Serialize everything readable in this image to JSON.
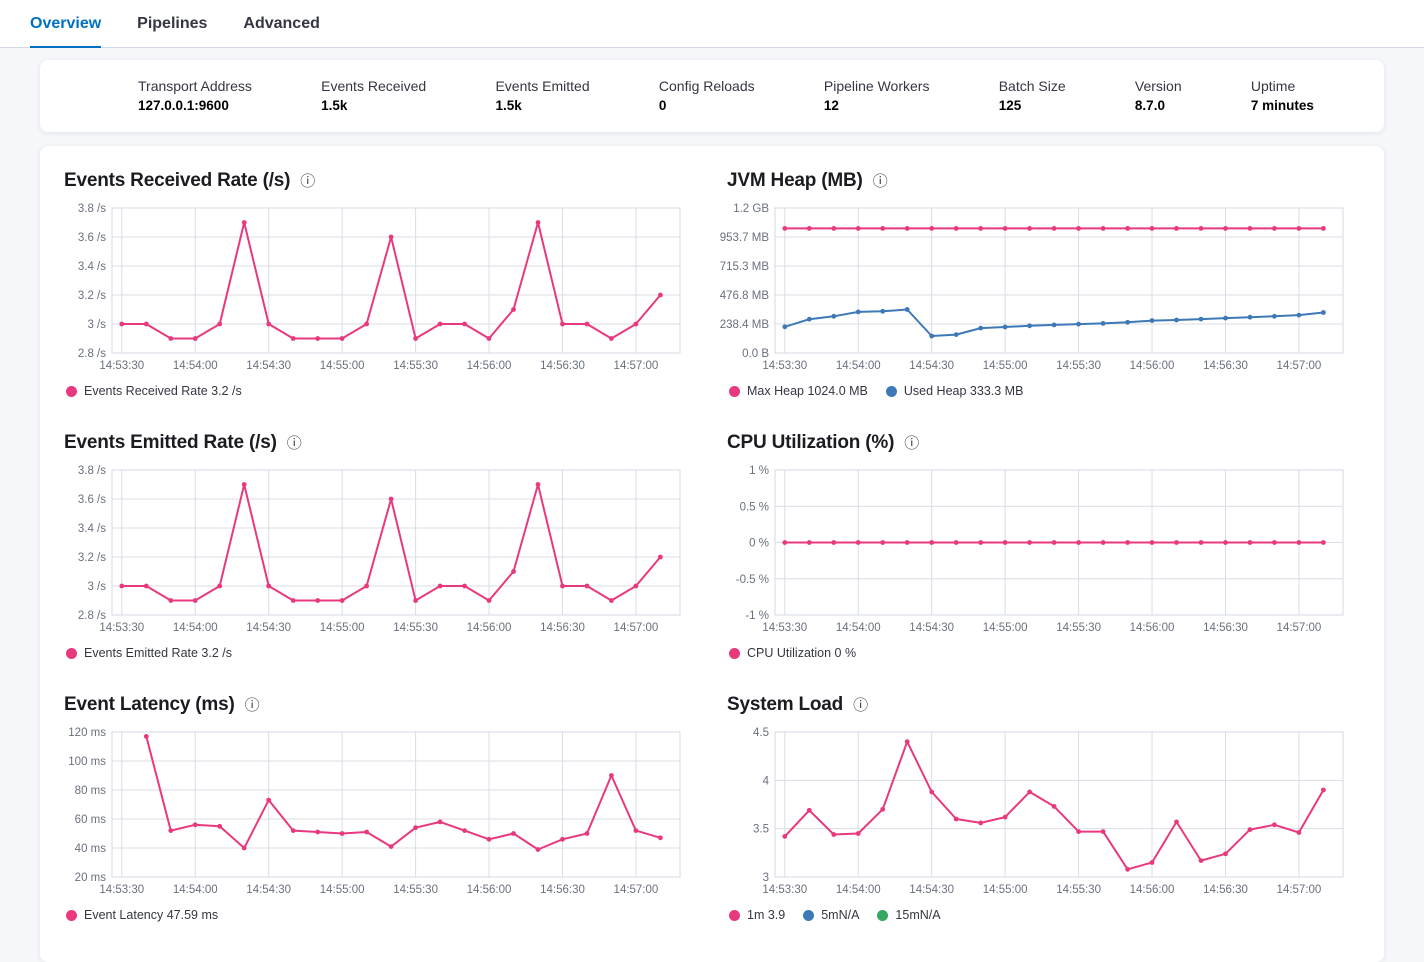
{
  "tabs": [
    {
      "label": "Overview",
      "active": true
    },
    {
      "label": "Pipelines",
      "active": false
    },
    {
      "label": "Advanced",
      "active": false
    }
  ],
  "summary": {
    "items": [
      {
        "label": "Transport Address",
        "value": "127.0.0.1:9600"
      },
      {
        "label": "Events Received",
        "value": "1.5k"
      },
      {
        "label": "Events Emitted",
        "value": "1.5k"
      },
      {
        "label": "Config Reloads",
        "value": "0"
      },
      {
        "label": "Pipeline Workers",
        "value": "12"
      },
      {
        "label": "Batch Size",
        "value": "125"
      },
      {
        "label": "Version",
        "value": "8.7.0"
      },
      {
        "label": "Uptime",
        "value": "7 minutes"
      }
    ]
  },
  "colors": {
    "pink": "#e8397f",
    "blue": "#3d79b6",
    "green": "#35a760",
    "tab_accent": "#0071c2"
  },
  "info_icon_glyph": "ⓘ",
  "chart_data": [
    {
      "id": "events-received-rate",
      "type": "line",
      "title": "Events Received Rate (/s)",
      "ylim": [
        2.8,
        3.8
      ],
      "y_ticks": [
        {
          "v": 3.8,
          "label": "3.8 /s"
        },
        {
          "v": 3.6,
          "label": "3.6 /s"
        },
        {
          "v": 3.4,
          "label": "3.4 /s"
        },
        {
          "v": 3.2,
          "label": "3.2 /s"
        },
        {
          "v": 3.0,
          "label": "3 /s"
        },
        {
          "v": 2.8,
          "label": "2.8 /s"
        }
      ],
      "x_tick_labels": [
        "14:53:30",
        "14:54:00",
        "14:54:30",
        "14:55:00",
        "14:55:30",
        "14:56:00",
        "14:56:30",
        "14:57:00"
      ],
      "x_tick_interval_s": 30,
      "point_interval_s": 10,
      "series": [
        {
          "name": "Events Received Rate",
          "color": "pink",
          "start_t": 0,
          "values": [
            3,
            3,
            2.9,
            2.9,
            3,
            3.7,
            3,
            2.9,
            2.9,
            2.9,
            3,
            3.6,
            2.9,
            3,
            3,
            2.9,
            3.1,
            3.7,
            3,
            3,
            2.9,
            3,
            3.2
          ]
        }
      ],
      "legend": [
        {
          "label": "Events Received Rate 3.2 /s",
          "color": "pink"
        }
      ]
    },
    {
      "id": "jvm-heap",
      "type": "line",
      "title": "JVM Heap (MB)",
      "ylim": [
        0,
        1192.1
      ],
      "y_ticks": [
        {
          "v": 1192.1,
          "label": "1.2 GB"
        },
        {
          "v": 953.7,
          "label": "953.7 MB"
        },
        {
          "v": 715.3,
          "label": "715.3 MB"
        },
        {
          "v": 476.8,
          "label": "476.8 MB"
        },
        {
          "v": 238.4,
          "label": "238.4 MB"
        },
        {
          "v": 0,
          "label": "0.0 B"
        }
      ],
      "x_tick_labels": [
        "14:53:30",
        "14:54:00",
        "14:54:30",
        "14:55:00",
        "14:55:30",
        "14:56:00",
        "14:56:30",
        "14:57:00"
      ],
      "x_tick_interval_s": 30,
      "point_interval_s": 10,
      "series": [
        {
          "name": "Max Heap",
          "color": "pink",
          "start_t": 0,
          "values": [
            1024,
            1024,
            1024,
            1024,
            1024,
            1024,
            1024,
            1024,
            1024,
            1024,
            1024,
            1024,
            1024,
            1024,
            1024,
            1024,
            1024,
            1024,
            1024,
            1024,
            1024,
            1024,
            1024
          ]
        },
        {
          "name": "Used Heap",
          "color": "blue",
          "start_t": 0,
          "values": [
            215,
            278,
            302,
            338,
            343,
            358,
            140,
            151,
            205,
            214,
            224,
            231,
            238,
            243,
            252,
            266,
            271,
            279,
            287,
            294,
            302,
            312,
            333
          ]
        }
      ],
      "legend": [
        {
          "label": "Max Heap 1024.0 MB",
          "color": "pink"
        },
        {
          "label": "Used Heap 333.3 MB",
          "color": "blue"
        }
      ]
    },
    {
      "id": "events-emitted-rate",
      "type": "line",
      "title": "Events Emitted Rate (/s)",
      "ylim": [
        2.8,
        3.8
      ],
      "y_ticks": [
        {
          "v": 3.8,
          "label": "3.8 /s"
        },
        {
          "v": 3.6,
          "label": "3.6 /s"
        },
        {
          "v": 3.4,
          "label": "3.4 /s"
        },
        {
          "v": 3.2,
          "label": "3.2 /s"
        },
        {
          "v": 3.0,
          "label": "3 /s"
        },
        {
          "v": 2.8,
          "label": "2.8 /s"
        }
      ],
      "x_tick_labels": [
        "14:53:30",
        "14:54:00",
        "14:54:30",
        "14:55:00",
        "14:55:30",
        "14:56:00",
        "14:56:30",
        "14:57:00"
      ],
      "x_tick_interval_s": 30,
      "point_interval_s": 10,
      "series": [
        {
          "name": "Events Emitted Rate",
          "color": "pink",
          "start_t": 0,
          "values": [
            3,
            3,
            2.9,
            2.9,
            3,
            3.7,
            3,
            2.9,
            2.9,
            2.9,
            3,
            3.6,
            2.9,
            3,
            3,
            2.9,
            3.1,
            3.7,
            3,
            3,
            2.9,
            3,
            3.2
          ]
        }
      ],
      "legend": [
        {
          "label": "Events Emitted Rate 3.2 /s",
          "color": "pink"
        }
      ]
    },
    {
      "id": "cpu-utilization",
      "type": "line",
      "title": "CPU Utilization (%)",
      "ylim": [
        -1,
        1
      ],
      "y_ticks": [
        {
          "v": 1,
          "label": "1 %"
        },
        {
          "v": 0.5,
          "label": "0.5 %"
        },
        {
          "v": 0,
          "label": "0 %"
        },
        {
          "v": -0.5,
          "label": "-0.5 %"
        },
        {
          "v": -1,
          "label": "-1 %"
        }
      ],
      "x_tick_labels": [
        "14:53:30",
        "14:54:00",
        "14:54:30",
        "14:55:00",
        "14:55:30",
        "14:56:00",
        "14:56:30",
        "14:57:00"
      ],
      "x_tick_interval_s": 30,
      "point_interval_s": 10,
      "series": [
        {
          "name": "CPU Utilization",
          "color": "pink",
          "start_t": 0,
          "values": [
            0,
            0,
            0,
            0,
            0,
            0,
            0,
            0,
            0,
            0,
            0,
            0,
            0,
            0,
            0,
            0,
            0,
            0,
            0,
            0,
            0,
            0,
            0
          ]
        }
      ],
      "legend": [
        {
          "label": "CPU Utilization 0 %",
          "color": "pink"
        }
      ]
    },
    {
      "id": "event-latency",
      "type": "line",
      "title": "Event Latency (ms)",
      "ylim": [
        20,
        120
      ],
      "y_ticks": [
        {
          "v": 120,
          "label": "120 ms"
        },
        {
          "v": 100,
          "label": "100 ms"
        },
        {
          "v": 80,
          "label": "80 ms"
        },
        {
          "v": 60,
          "label": "60 ms"
        },
        {
          "v": 40,
          "label": "40 ms"
        },
        {
          "v": 20,
          "label": "20 ms"
        }
      ],
      "x_tick_labels": [
        "14:53:30",
        "14:54:00",
        "14:54:30",
        "14:55:00",
        "14:55:30",
        "14:56:00",
        "14:56:30",
        "14:57:00"
      ],
      "x_tick_interval_s": 30,
      "point_interval_s": 10,
      "series": [
        {
          "name": "Event Latency",
          "color": "pink",
          "start_t": 10,
          "values": [
            117,
            52,
            56,
            55,
            40,
            73,
            52,
            51,
            50,
            51,
            41,
            54,
            58,
            52,
            46,
            50,
            39,
            46,
            50,
            90,
            52,
            47
          ]
        }
      ],
      "legend": [
        {
          "label": "Event Latency 47.59 ms",
          "color": "pink"
        }
      ]
    },
    {
      "id": "system-load",
      "type": "line",
      "title": "System Load",
      "ylim": [
        3,
        4.5
      ],
      "y_ticks": [
        {
          "v": 4.5,
          "label": "4.5"
        },
        {
          "v": 4,
          "label": "4"
        },
        {
          "v": 3.5,
          "label": "3.5"
        },
        {
          "v": 3,
          "label": "3"
        }
      ],
      "x_tick_labels": [
        "14:53:30",
        "14:54:00",
        "14:54:30",
        "14:55:00",
        "14:55:30",
        "14:56:00",
        "14:56:30",
        "14:57:00"
      ],
      "x_tick_interval_s": 30,
      "point_interval_s": 10,
      "series": [
        {
          "name": "1m",
          "color": "pink",
          "start_t": 0,
          "values": [
            3.42,
            3.69,
            3.44,
            3.45,
            3.7,
            4.4,
            3.88,
            3.6,
            3.56,
            3.62,
            3.88,
            3.73,
            3.47,
            3.47,
            3.08,
            3.15,
            3.57,
            3.17,
            3.24,
            3.49,
            3.54,
            3.46,
            3.9
          ]
        }
      ],
      "legend": [
        {
          "label": "1m 3.9",
          "color": "pink"
        },
        {
          "label": "5mN/A",
          "color": "blue"
        },
        {
          "label": "15mN/A",
          "color": "green"
        }
      ]
    }
  ]
}
